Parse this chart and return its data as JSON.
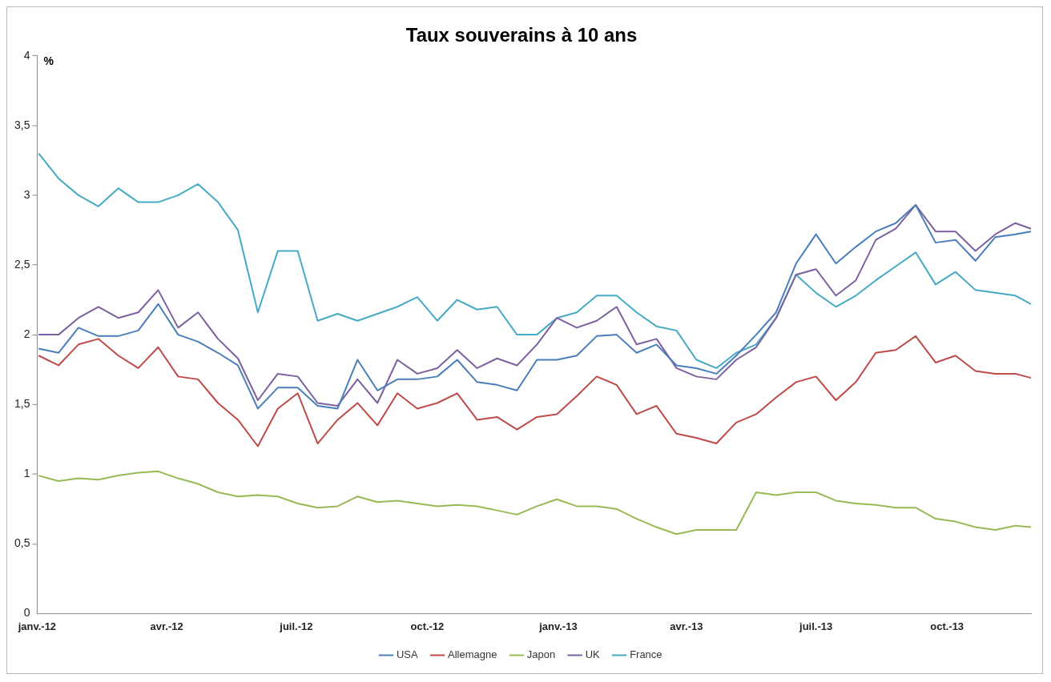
{
  "chart_data": {
    "type": "line",
    "title": "Taux souverains à 10 ans",
    "ylabel": "%",
    "x": [
      "2012-01-02",
      "2012-01-16",
      "2012-01-30",
      "2012-02-13",
      "2012-02-27",
      "2012-03-12",
      "2012-03-26",
      "2012-04-09",
      "2012-04-23",
      "2012-05-07",
      "2012-05-21",
      "2012-06-04",
      "2012-06-18",
      "2012-07-02",
      "2012-07-16",
      "2012-07-30",
      "2012-08-13",
      "2012-08-27",
      "2012-09-10",
      "2012-09-24",
      "2012-10-08",
      "2012-10-22",
      "2012-11-05",
      "2012-11-19",
      "2012-12-03",
      "2012-12-17",
      "2012-12-31",
      "2013-01-14",
      "2013-01-28",
      "2013-02-11",
      "2013-02-25",
      "2013-03-11",
      "2013-03-25",
      "2013-04-08",
      "2013-04-22",
      "2013-05-06",
      "2013-05-20",
      "2013-06-03",
      "2013-06-17",
      "2013-07-01",
      "2013-07-15",
      "2013-07-29",
      "2013-08-12",
      "2013-08-26",
      "2013-09-09",
      "2013-09-23",
      "2013-10-07",
      "2013-10-21",
      "2013-11-04",
      "2013-11-18",
      "2013-11-29"
    ],
    "series": [
      {
        "name": "USA",
        "color": "#4a7ebb",
        "values": [
          1.9,
          1.87,
          2.05,
          1.99,
          1.99,
          2.03,
          2.22,
          2.0,
          1.95,
          1.87,
          1.78,
          1.47,
          1.62,
          1.62,
          1.49,
          1.47,
          1.82,
          1.6,
          1.68,
          1.68,
          1.7,
          1.82,
          1.66,
          1.64,
          1.6,
          1.82,
          1.82,
          1.85,
          1.99,
          2.0,
          1.87,
          1.93,
          1.78,
          1.76,
          1.72,
          1.85,
          2.0,
          2.16,
          2.51,
          2.72,
          2.51,
          2.63,
          2.74,
          2.8,
          2.93,
          2.66,
          2.68,
          2.53,
          2.7,
          2.72,
          2.74
        ]
      },
      {
        "name": "Allemagne",
        "color": "#be4b48",
        "values": [
          1.85,
          1.78,
          1.93,
          1.97,
          1.85,
          1.76,
          1.91,
          1.7,
          1.68,
          1.51,
          1.39,
          1.2,
          1.47,
          1.58,
          1.22,
          1.39,
          1.51,
          1.35,
          1.58,
          1.47,
          1.51,
          1.58,
          1.39,
          1.41,
          1.32,
          1.41,
          1.43,
          1.56,
          1.7,
          1.64,
          1.43,
          1.49,
          1.29,
          1.26,
          1.22,
          1.37,
          1.43,
          1.55,
          1.66,
          1.7,
          1.53,
          1.66,
          1.87,
          1.89,
          1.99,
          1.8,
          1.85,
          1.74,
          1.72,
          1.72,
          1.69
        ]
      },
      {
        "name": "Japon",
        "color": "#98b954",
        "values": [
          0.99,
          0.95,
          0.97,
          0.96,
          0.99,
          1.01,
          1.02,
          0.97,
          0.93,
          0.87,
          0.84,
          0.85,
          0.84,
          0.79,
          0.76,
          0.77,
          0.84,
          0.8,
          0.81,
          0.79,
          0.77,
          0.78,
          0.77,
          0.74,
          0.71,
          0.77,
          0.82,
          0.77,
          0.77,
          0.75,
          0.68,
          0.62,
          0.57,
          0.6,
          0.6,
          0.6,
          0.87,
          0.85,
          0.87,
          0.87,
          0.81,
          0.79,
          0.78,
          0.76,
          0.76,
          0.68,
          0.66,
          0.62,
          0.6,
          0.63,
          0.62
        ]
      },
      {
        "name": "UK",
        "color": "#7d60a0",
        "values": [
          2.0,
          2.0,
          2.12,
          2.2,
          2.12,
          2.16,
          2.32,
          2.05,
          2.16,
          1.97,
          1.83,
          1.53,
          1.72,
          1.7,
          1.51,
          1.49,
          1.68,
          1.51,
          1.82,
          1.72,
          1.76,
          1.89,
          1.76,
          1.83,
          1.78,
          1.93,
          2.12,
          2.05,
          2.1,
          2.2,
          1.93,
          1.97,
          1.76,
          1.7,
          1.68,
          1.82,
          1.91,
          2.12,
          2.43,
          2.47,
          2.28,
          2.39,
          2.68,
          2.76,
          2.93,
          2.74,
          2.74,
          2.6,
          2.72,
          2.8,
          2.76
        ]
      },
      {
        "name": "France",
        "color": "#46aac5",
        "values": [
          3.3,
          3.12,
          3.0,
          2.92,
          3.05,
          2.95,
          2.95,
          3.0,
          3.08,
          2.95,
          2.75,
          2.16,
          2.6,
          2.6,
          2.1,
          2.15,
          2.1,
          2.15,
          2.2,
          2.27,
          2.1,
          2.25,
          2.18,
          2.2,
          2.0,
          2.0,
          2.12,
          2.16,
          2.28,
          2.28,
          2.16,
          2.06,
          2.03,
          1.82,
          1.76,
          1.87,
          1.93,
          2.12,
          2.43,
          2.3,
          2.2,
          2.28,
          2.39,
          2.49,
          2.59,
          2.36,
          2.45,
          2.32,
          2.3,
          2.28,
          2.22
        ]
      }
    ],
    "xlim": [
      "2012-01-01",
      "2013-11-29"
    ],
    "xticks": [
      {
        "value": "2012-01-01",
        "label": "janv.-12"
      },
      {
        "value": "2012-04-01",
        "label": "avr.-12"
      },
      {
        "value": "2012-07-01",
        "label": "juil.-12"
      },
      {
        "value": "2012-10-01",
        "label": "oct.-12"
      },
      {
        "value": "2013-01-01",
        "label": "janv.-13"
      },
      {
        "value": "2013-04-01",
        "label": "avr.-13"
      },
      {
        "value": "2013-07-01",
        "label": "juil.-13"
      },
      {
        "value": "2013-10-01",
        "label": "oct.-13"
      }
    ],
    "ylim": [
      0,
      4
    ],
    "yticks": [
      0,
      {
        "value": 0.5,
        "label": "0,5"
      },
      1,
      {
        "value": 1.5,
        "label": "1,5"
      },
      2,
      {
        "value": 2.5,
        "label": "2,5"
      },
      3,
      {
        "value": 3.5,
        "label": "3,5"
      },
      4
    ],
    "grid": false,
    "legend": "bottom",
    "marker": "none",
    "line_style": "solid"
  }
}
